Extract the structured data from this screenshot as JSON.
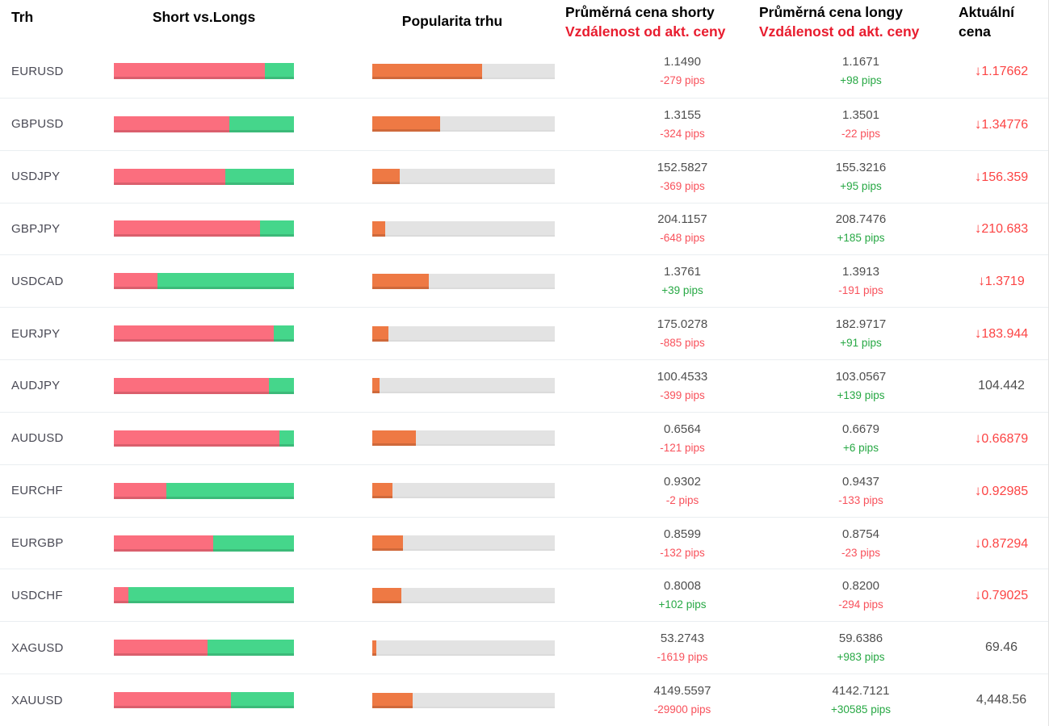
{
  "header": {
    "market": "Trh",
    "short_vs_longs": "Short vs.Longs",
    "popularity": "Popularita trhu",
    "avg_short_line1": "Průměrná cena shorty",
    "avg_short_line2": "Vzdálenost od akt. ceny",
    "avg_long_line1": "Průměrná cena longy",
    "avg_long_line2": "Vzdálenost od akt. ceny",
    "actual_line1": "Aktuální",
    "actual_line2": "cena"
  },
  "icons": {
    "price_down_arrow": "↓"
  },
  "colors": {
    "short_bar": "#fb6e7e",
    "long_bar": "#45d68b",
    "popularity_bar": "#ee7944",
    "track": "#e3e3e3",
    "negative_text": "#f8515b",
    "positive_text": "#27a844",
    "price_down": "#fc4444",
    "header_red": "#e81c2e",
    "market_text": "#4a4a55",
    "value_text": "#4e4e4e"
  },
  "rows": [
    {
      "market": "EURUSD",
      "short_pct": 84,
      "long_pct": 16,
      "popularity_pct": 60,
      "short_price": "1.1490",
      "short_pips": "-279 pips",
      "short_pips_dir": "neg",
      "long_price": "1.1671",
      "long_pips": "+98 pips",
      "long_pips_dir": "pos",
      "actual_price": "1.17662",
      "actual_arrow": "down",
      "actual_color": "red"
    },
    {
      "market": "GBPUSD",
      "short_pct": 64,
      "long_pct": 36,
      "popularity_pct": 37,
      "short_price": "1.3155",
      "short_pips": "-324 pips",
      "short_pips_dir": "neg",
      "long_price": "1.3501",
      "long_pips": "-22 pips",
      "long_pips_dir": "neg",
      "actual_price": "1.34776",
      "actual_arrow": "down",
      "actual_color": "red"
    },
    {
      "market": "USDJPY",
      "short_pct": 62,
      "long_pct": 38,
      "popularity_pct": 15,
      "short_price": "152.5827",
      "short_pips": "-369 pips",
      "short_pips_dir": "neg",
      "long_price": "155.3216",
      "long_pips": "+95 pips",
      "long_pips_dir": "pos",
      "actual_price": "156.359",
      "actual_arrow": "down",
      "actual_color": "red"
    },
    {
      "market": "GBPJPY",
      "short_pct": 81,
      "long_pct": 19,
      "popularity_pct": 7,
      "short_price": "204.1157",
      "short_pips": "-648 pips",
      "short_pips_dir": "neg",
      "long_price": "208.7476",
      "long_pips": "+185 pips",
      "long_pips_dir": "pos",
      "actual_price": "210.683",
      "actual_arrow": "down",
      "actual_color": "red"
    },
    {
      "market": "USDCAD",
      "short_pct": 24,
      "long_pct": 76,
      "popularity_pct": 31,
      "short_price": "1.3761",
      "short_pips": "+39 pips",
      "short_pips_dir": "pos",
      "long_price": "1.3913",
      "long_pips": "-191 pips",
      "long_pips_dir": "neg",
      "actual_price": "1.3719",
      "actual_arrow": "down",
      "actual_color": "red"
    },
    {
      "market": "EURJPY",
      "short_pct": 89,
      "long_pct": 11,
      "popularity_pct": 9,
      "short_price": "175.0278",
      "short_pips": "-885 pips",
      "short_pips_dir": "neg",
      "long_price": "182.9717",
      "long_pips": "+91 pips",
      "long_pips_dir": "pos",
      "actual_price": "183.944",
      "actual_arrow": "down",
      "actual_color": "red"
    },
    {
      "market": "AUDJPY",
      "short_pct": 86,
      "long_pct": 14,
      "popularity_pct": 4,
      "short_price": "100.4533",
      "short_pips": "-399 pips",
      "short_pips_dir": "neg",
      "long_price": "103.0567",
      "long_pips": "+139 pips",
      "long_pips_dir": "pos",
      "actual_price": "104.442",
      "actual_arrow": "",
      "actual_color": "neutral"
    },
    {
      "market": "AUDUSD",
      "short_pct": 92,
      "long_pct": 8,
      "popularity_pct": 24,
      "short_price": "0.6564",
      "short_pips": "-121 pips",
      "short_pips_dir": "neg",
      "long_price": "0.6679",
      "long_pips": "+6 pips",
      "long_pips_dir": "pos",
      "actual_price": "0.66879",
      "actual_arrow": "down",
      "actual_color": "red"
    },
    {
      "market": "EURCHF",
      "short_pct": 29,
      "long_pct": 71,
      "popularity_pct": 11,
      "short_price": "0.9302",
      "short_pips": "-2 pips",
      "short_pips_dir": "neg",
      "long_price": "0.9437",
      "long_pips": "-133 pips",
      "long_pips_dir": "neg",
      "actual_price": "0.92985",
      "actual_arrow": "down",
      "actual_color": "red"
    },
    {
      "market": "EURGBP",
      "short_pct": 55,
      "long_pct": 45,
      "popularity_pct": 17,
      "short_price": "0.8599",
      "short_pips": "-132 pips",
      "short_pips_dir": "neg",
      "long_price": "0.8754",
      "long_pips": "-23 pips",
      "long_pips_dir": "neg",
      "actual_price": "0.87294",
      "actual_arrow": "down",
      "actual_color": "red"
    },
    {
      "market": "USDCHF",
      "short_pct": 8,
      "long_pct": 92,
      "popularity_pct": 16,
      "short_price": "0.8008",
      "short_pips": "+102 pips",
      "short_pips_dir": "pos",
      "long_price": "0.8200",
      "long_pips": "-294 pips",
      "long_pips_dir": "neg",
      "actual_price": "0.79025",
      "actual_arrow": "down",
      "actual_color": "red"
    },
    {
      "market": "XAGUSD",
      "short_pct": 52,
      "long_pct": 48,
      "popularity_pct": 2,
      "short_price": "53.2743",
      "short_pips": "-1619 pips",
      "short_pips_dir": "neg",
      "long_price": "59.6386",
      "long_pips": "+983 pips",
      "long_pips_dir": "pos",
      "actual_price": "69.46",
      "actual_arrow": "",
      "actual_color": "neutral"
    },
    {
      "market": "XAUUSD",
      "short_pct": 65,
      "long_pct": 35,
      "popularity_pct": 22,
      "short_price": "4149.5597",
      "short_pips": "-29900 pips",
      "short_pips_dir": "neg",
      "long_price": "4142.7121",
      "long_pips": "+30585 pips",
      "long_pips_dir": "pos",
      "actual_price": "4,448.56",
      "actual_arrow": "",
      "actual_color": "neutral"
    }
  ]
}
